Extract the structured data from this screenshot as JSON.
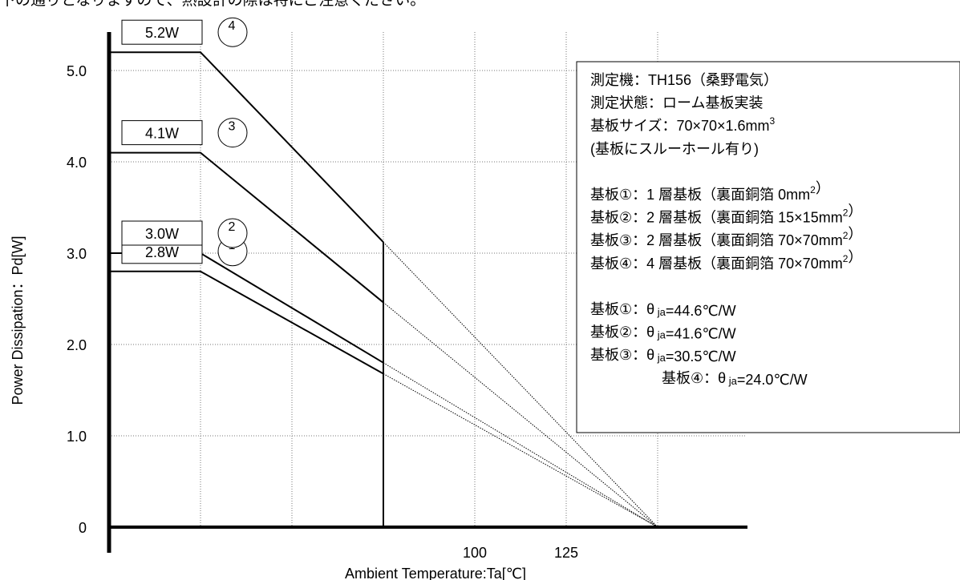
{
  "top_text": "下の通りとなりますので、熱設計の際は特にご注意ください。",
  "chart_data": {
    "type": "line",
    "title": "",
    "xlabel": "Ambient Temperature:Ta[℃]",
    "ylabel": "Power Dissipation：Pd[W]",
    "xlim": [
      0,
      150
    ],
    "ylim": [
      0,
      5.5
    ],
    "x_ticks": [
      {
        "value": 100,
        "label": "100"
      },
      {
        "value": 125,
        "label": "125"
      }
    ],
    "y_ticks": [
      {
        "value": 0,
        "label": "0"
      },
      {
        "value": 1.0,
        "label": "1.0"
      },
      {
        "value": 2.0,
        "label": "2.0"
      },
      {
        "value": 3.0,
        "label": "3.0"
      },
      {
        "value": 4.0,
        "label": "4.0"
      },
      {
        "value": 5.0,
        "label": "5.0"
      }
    ],
    "x_grid": [
      25,
      50,
      75,
      100,
      125,
      150
    ],
    "y_grid": [
      1,
      2,
      3,
      4,
      5
    ],
    "grid": true,
    "cutoff_x": 75,
    "end_x": 150,
    "series": [
      {
        "name": "①",
        "values": [
          {
            "x": 0,
            "y": 2.8
          },
          {
            "x": 25,
            "y": 2.8
          },
          {
            "x": 75,
            "y": 1.68
          }
        ],
        "label": "2.8W",
        "marker": "1"
      },
      {
        "name": "②",
        "values": [
          {
            "x": 0,
            "y": 3.0
          },
          {
            "x": 25,
            "y": 3.0
          },
          {
            "x": 75,
            "y": 1.8
          }
        ],
        "label": "3.0W",
        "marker": "2"
      },
      {
        "name": "③",
        "values": [
          {
            "x": 0,
            "y": 4.1
          },
          {
            "x": 25,
            "y": 4.1
          },
          {
            "x": 75,
            "y": 2.46
          }
        ],
        "label": "4.1W",
        "marker": "3"
      },
      {
        "name": "④",
        "values": [
          {
            "x": 0,
            "y": 5.2
          },
          {
            "x": 25,
            "y": 5.2
          },
          {
            "x": 75,
            "y": 3.12
          }
        ],
        "label": "5.2W",
        "marker": "4"
      }
    ],
    "annotations": [
      [
        {
          "t": "測定機：TH156（桑野電気）"
        }
      ],
      [
        {
          "t": "測定状態：ローム基板実装"
        }
      ],
      [
        {
          "t": "基板サイズ：70×70×1.6mm"
        },
        {
          "t": "3",
          "sup": true
        }
      ],
      [
        {
          "t": "(基板にスルーホール有り)"
        }
      ],
      [],
      [
        {
          "t": "基板①：1 層基板（裏面銅箔 0mm"
        },
        {
          "t": "2",
          "sup": true
        },
        {
          "t": "）"
        }
      ],
      [
        {
          "t": "基板②：2 層基板（裏面銅箔 15×15mm"
        },
        {
          "t": "2",
          "sup": true
        },
        {
          "t": "）"
        }
      ],
      [
        {
          "t": "基板③：2 層基板（裏面銅箔 70×70mm"
        },
        {
          "t": "2",
          "sup": true
        },
        {
          "t": "）"
        }
      ],
      [
        {
          "t": "基板④：4 層基板（裏面銅箔 70×70mm"
        },
        {
          "t": "2",
          "sup": true
        },
        {
          "t": "）"
        }
      ],
      [],
      [
        {
          "t": "基板①：θ"
        },
        {
          "t": " ja",
          "sub": true
        },
        {
          "t": "=44.6℃/W"
        }
      ],
      [
        {
          "t": "基板②：θ"
        },
        {
          "t": " ja",
          "sub": true
        },
        {
          "t": "=41.6℃/W"
        }
      ],
      [
        {
          "t": "基板③：θ"
        },
        {
          "t": " ja",
          "sub": true
        },
        {
          "t": "=30.5℃/W"
        }
      ],
      [
        {
          "t": "基板④：θ"
        },
        {
          "t": " ja",
          "sub": true
        },
        {
          "t": "=24.0℃/W"
        }
      ]
    ]
  }
}
